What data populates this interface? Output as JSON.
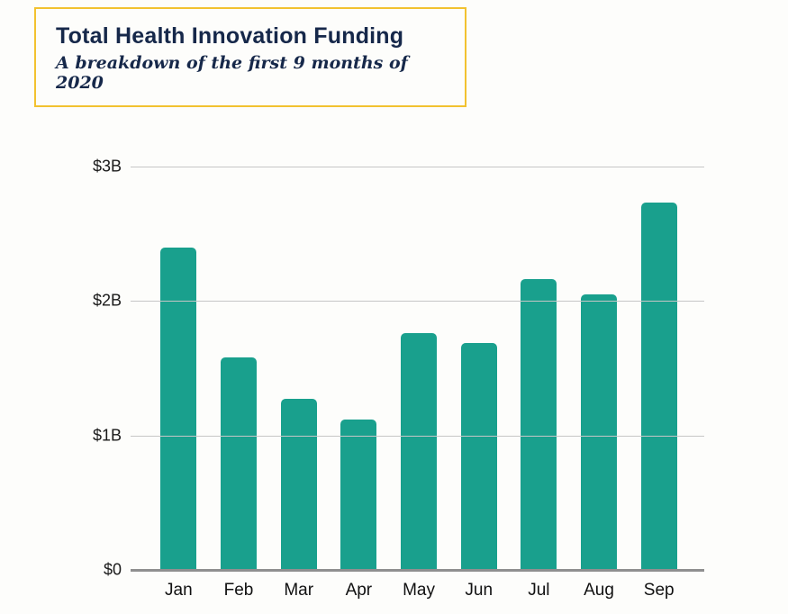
{
  "colors": {
    "bar": "#19a08d",
    "title_text": "#16284a",
    "header_border": "#f2c230",
    "gridline": "#c6c6c6",
    "baseline": "#8f8f8f",
    "background": "#fdfdfb"
  },
  "chart_data": {
    "type": "bar",
    "title": "Total Health Innovation Funding",
    "subtitle": "A breakdown of the first 9 months of 2020",
    "categories": [
      "Jan",
      "Feb",
      "Mar",
      "Apr",
      "May",
      "Jun",
      "Jul",
      "Aug",
      "Sep"
    ],
    "values": [
      2.4,
      1.58,
      1.27,
      1.12,
      1.76,
      1.69,
      2.16,
      2.05,
      2.73
    ],
    "xlabel": "",
    "ylabel": "",
    "ylim": [
      0,
      3
    ],
    "yticks": [
      0,
      1,
      2,
      3
    ],
    "ytick_labels": [
      "$0",
      "$1B",
      "$2B",
      "$3B"
    ],
    "grid": true,
    "legend": false,
    "bar_color": "#19a08d"
  }
}
